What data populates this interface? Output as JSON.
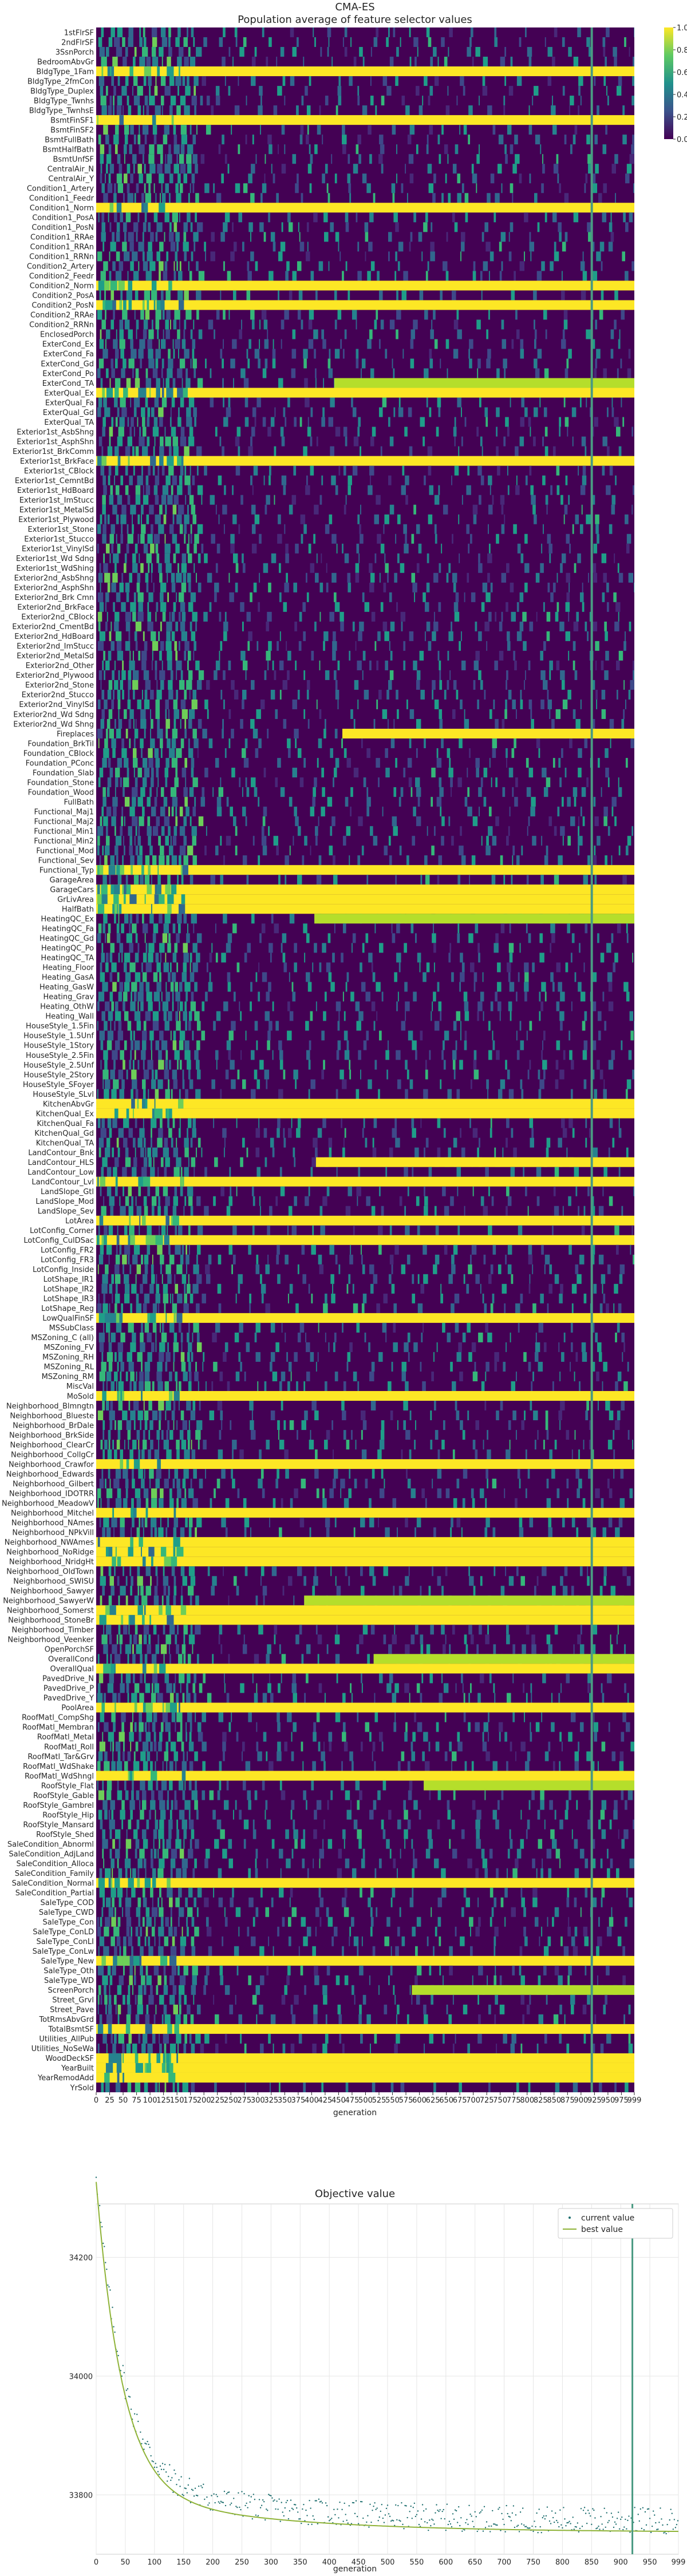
{
  "chart_data": [
    {
      "type": "heatmap",
      "title": "CMA-ES",
      "subtitle": "Population average of feature selector values",
      "xlabel": "generation",
      "xlim": [
        0,
        999
      ],
      "x_ticks": [
        "0",
        "25",
        "50",
        "75",
        "100",
        "125",
        "150",
        "175",
        "200",
        "225",
        "250",
        "275",
        "300",
        "325",
        "350",
        "375",
        "400",
        "425",
        "450",
        "475",
        "500",
        "525",
        "550",
        "575",
        "600",
        "625",
        "650",
        "675",
        "700",
        "725",
        "750",
        "775",
        "800",
        "825",
        "850",
        "875",
        "900",
        "925",
        "950",
        "975",
        "999"
      ],
      "colorbar": {
        "colormap": "viridis",
        "range": [
          0,
          1.0
        ],
        "ticks": [
          "0.0",
          "0.2",
          "0.4",
          "0.6",
          "0.8",
          "1.0"
        ]
      },
      "marker_generation": 920,
      "rows": [
        "1stFlrSF",
        "2ndFlrSF",
        "3SsnPorch",
        "BedroomAbvGr",
        "BldgType_1Fam",
        "BldgType_2fmCon",
        "BldgType_Duplex",
        "BldgType_Twnhs",
        "BldgType_TwnhsE",
        "BsmtFinSF1",
        "BsmtFinSF2",
        "BsmtFullBath",
        "BsmtHalfBath",
        "BsmtUnfSF",
        "CentralAir_N",
        "CentralAir_Y",
        "Condition1_Artery",
        "Condition1_Feedr",
        "Condition1_Norm",
        "Condition1_PosA",
        "Condition1_PosN",
        "Condition1_RRAe",
        "Condition1_RRAn",
        "Condition1_RRNn",
        "Condition2_Artery",
        "Condition2_Feedr",
        "Condition2_Norm",
        "Condition2_PosA",
        "Condition2_PosN",
        "Condition2_RRAe",
        "Condition2_RRNn",
        "EnclosedPorch",
        "ExterCond_Ex",
        "ExterCond_Fa",
        "ExterCond_Gd",
        "ExterCond_Po",
        "ExterCond_TA",
        "ExterQual_Ex",
        "ExterQual_Fa",
        "ExterQual_Gd",
        "ExterQual_TA",
        "Exterior1st_AsbShng",
        "Exterior1st_AsphShn",
        "Exterior1st_BrkComm",
        "Exterior1st_BrkFace",
        "Exterior1st_CBlock",
        "Exterior1st_CemntBd",
        "Exterior1st_HdBoard",
        "Exterior1st_ImStucc",
        "Exterior1st_MetalSd",
        "Exterior1st_Plywood",
        "Exterior1st_Stone",
        "Exterior1st_Stucco",
        "Exterior1st_VinylSd",
        "Exterior1st_Wd Sdng",
        "Exterior1st_WdShing",
        "Exterior2nd_AsbShng",
        "Exterior2nd_AsphShn",
        "Exterior2nd_Brk Cmn",
        "Exterior2nd_BrkFace",
        "Exterior2nd_CBlock",
        "Exterior2nd_CmentBd",
        "Exterior2nd_HdBoard",
        "Exterior2nd_ImStucc",
        "Exterior2nd_MetalSd",
        "Exterior2nd_Other",
        "Exterior2nd_Plywood",
        "Exterior2nd_Stone",
        "Exterior2nd_Stucco",
        "Exterior2nd_VinylSd",
        "Exterior2nd_Wd Sdng",
        "Exterior2nd_Wd Shng",
        "Fireplaces",
        "Foundation_BrkTil",
        "Foundation_CBlock",
        "Foundation_PConc",
        "Foundation_Slab",
        "Foundation_Stone",
        "Foundation_Wood",
        "FullBath",
        "Functional_Maj1",
        "Functional_Maj2",
        "Functional_Min1",
        "Functional_Min2",
        "Functional_Mod",
        "Functional_Sev",
        "Functional_Typ",
        "GarageArea",
        "GarageCars",
        "GrLivArea",
        "HalfBath",
        "HeatingQC_Ex",
        "HeatingQC_Fa",
        "HeatingQC_Gd",
        "HeatingQC_Po",
        "HeatingQC_TA",
        "Heating_Floor",
        "Heating_GasA",
        "Heating_GasW",
        "Heating_Grav",
        "Heating_OthW",
        "Heating_Wall",
        "HouseStyle_1.5Fin",
        "HouseStyle_1.5Unf",
        "HouseStyle_1Story",
        "HouseStyle_2.5Fin",
        "HouseStyle_2.5Unf",
        "HouseStyle_2Story",
        "HouseStyle_SFoyer",
        "HouseStyle_SLvl",
        "KitchenAbvGr",
        "KitchenQual_Ex",
        "KitchenQual_Fa",
        "KitchenQual_Gd",
        "KitchenQual_TA",
        "LandContour_Bnk",
        "LandContour_HLS",
        "LandContour_Low",
        "LandContour_Lvl",
        "LandSlope_Gtl",
        "LandSlope_Mod",
        "LandSlope_Sev",
        "LotArea",
        "LotConfig_Corner",
        "LotConfig_CulDSac",
        "LotConfig_FR2",
        "LotConfig_FR3",
        "LotConfig_Inside",
        "LotShape_IR1",
        "LotShape_IR2",
        "LotShape_IR3",
        "LotShape_Reg",
        "LowQualFinSF",
        "MSSubClass",
        "MSZoning_C (all)",
        "MSZoning_FV",
        "MSZoning_RH",
        "MSZoning_RL",
        "MSZoning_RM",
        "MiscVal",
        "MoSold",
        "Neighborhood_Blmngtn",
        "Neighborhood_Blueste",
        "Neighborhood_BrDale",
        "Neighborhood_BrkSide",
        "Neighborhood_ClearCr",
        "Neighborhood_CollgCr",
        "Neighborhood_Crawfor",
        "Neighborhood_Edwards",
        "Neighborhood_Gilbert",
        "Neighborhood_IDOTRR",
        "Neighborhood_MeadowV",
        "Neighborhood_Mitchel",
        "Neighborhood_NAmes",
        "Neighborhood_NPkVill",
        "Neighborhood_NWAmes",
        "Neighborhood_NoRidge",
        "Neighborhood_NridgHt",
        "Neighborhood_OldTown",
        "Neighborhood_SWISU",
        "Neighborhood_Sawyer",
        "Neighborhood_SawyerW",
        "Neighborhood_Somerst",
        "Neighborhood_StoneBr",
        "Neighborhood_Timber",
        "Neighborhood_Veenker",
        "OpenPorchSF",
        "OverallCond",
        "OverallQual",
        "PavedDrive_N",
        "PavedDrive_P",
        "PavedDrive_Y",
        "PoolArea",
        "RoofMatl_CompShg",
        "RoofMatl_Membran",
        "RoofMatl_Metal",
        "RoofMatl_Roll",
        "RoofMatl_Tar&Grv",
        "RoofMatl_WdShake",
        "RoofMatl_WdShngl",
        "RoofStyle_Flat",
        "RoofStyle_Gable",
        "RoofStyle_Gambrel",
        "RoofStyle_Hip",
        "RoofStyle_Mansard",
        "RoofStyle_Shed",
        "SaleCondition_Abnorml",
        "SaleCondition_AdjLand",
        "SaleCondition_Alloca",
        "SaleCondition_Family",
        "SaleCondition_Normal",
        "SaleCondition_Partial",
        "SaleType_COD",
        "SaleType_CWD",
        "SaleType_Con",
        "SaleType_ConLD",
        "SaleType_ConLI",
        "SaleType_ConLw",
        "SaleType_New",
        "SaleType_Oth",
        "SaleType_WD",
        "ScreenPorch",
        "Street_Grvl",
        "Street_Pave",
        "TotRmsAbvGrd",
        "TotalBsmtSF",
        "Utilities_AllPub",
        "Utilities_NoSeWa",
        "WoodDeckSF",
        "YearBuilt",
        "YearRemodAdd",
        "YrSold"
      ],
      "high_rows": [
        "BldgType_1Fam",
        "BsmtFinSF1",
        "Condition1_Norm",
        "Condition2_Norm",
        "Condition2_PosN",
        "ExterQual_Ex",
        "Exterior1st_BrkFace",
        "Functional_Typ",
        "GarageCars",
        "GrLivArea",
        "HalfBath",
        "KitchenAbvGr",
        "KitchenQual_Ex",
        "LandContour_Lvl",
        "LotArea",
        "LotConfig_CulDSac",
        "LowQualFinSF",
        "MoSold",
        "Neighborhood_Crawfor",
        "Neighborhood_Mitchel",
        "Neighborhood_NWAmes",
        "Neighborhood_NoRidge",
        "Neighborhood_NridgHt",
        "Neighborhood_Somerst",
        "Neighborhood_StoneBr",
        "OverallQual",
        "PoolArea",
        "RoofMatl_WdShngl",
        "SaleCondition_Normal",
        "SaleType_New",
        "TotalBsmtSF",
        "WoodDeckSF",
        "YearBuilt",
        "YearRemodAdd"
      ],
      "rising_rows": [
        "HeatingQC_Ex",
        "LandContour_HLS",
        "OverallCond",
        "Neighborhood_SawyerW",
        "ExterCond_TA",
        "RoofStyle_Flat",
        "ScreenPorch",
        "Fireplaces"
      ]
    },
    {
      "type": "line",
      "title": "Objective value",
      "xlabel": "generation",
      "xlim": [
        0,
        999
      ],
      "x_ticks": [
        "0",
        "50",
        "100",
        "150",
        "200",
        "250",
        "300",
        "350",
        "400",
        "450",
        "500",
        "550",
        "600",
        "650",
        "700",
        "750",
        "800",
        "850",
        "900",
        "950",
        "999"
      ],
      "y_ticks": [
        "34200",
        "34000",
        "33800"
      ],
      "ylim": [
        33700,
        34290
      ],
      "legend": {
        "placement": "top-right",
        "entries": [
          "current value",
          "best value"
        ]
      },
      "series": [
        {
          "name": "current value",
          "style": "points"
        },
        {
          "name": "best value",
          "style": "line"
        }
      ],
      "marker_generation": 920
    }
  ]
}
